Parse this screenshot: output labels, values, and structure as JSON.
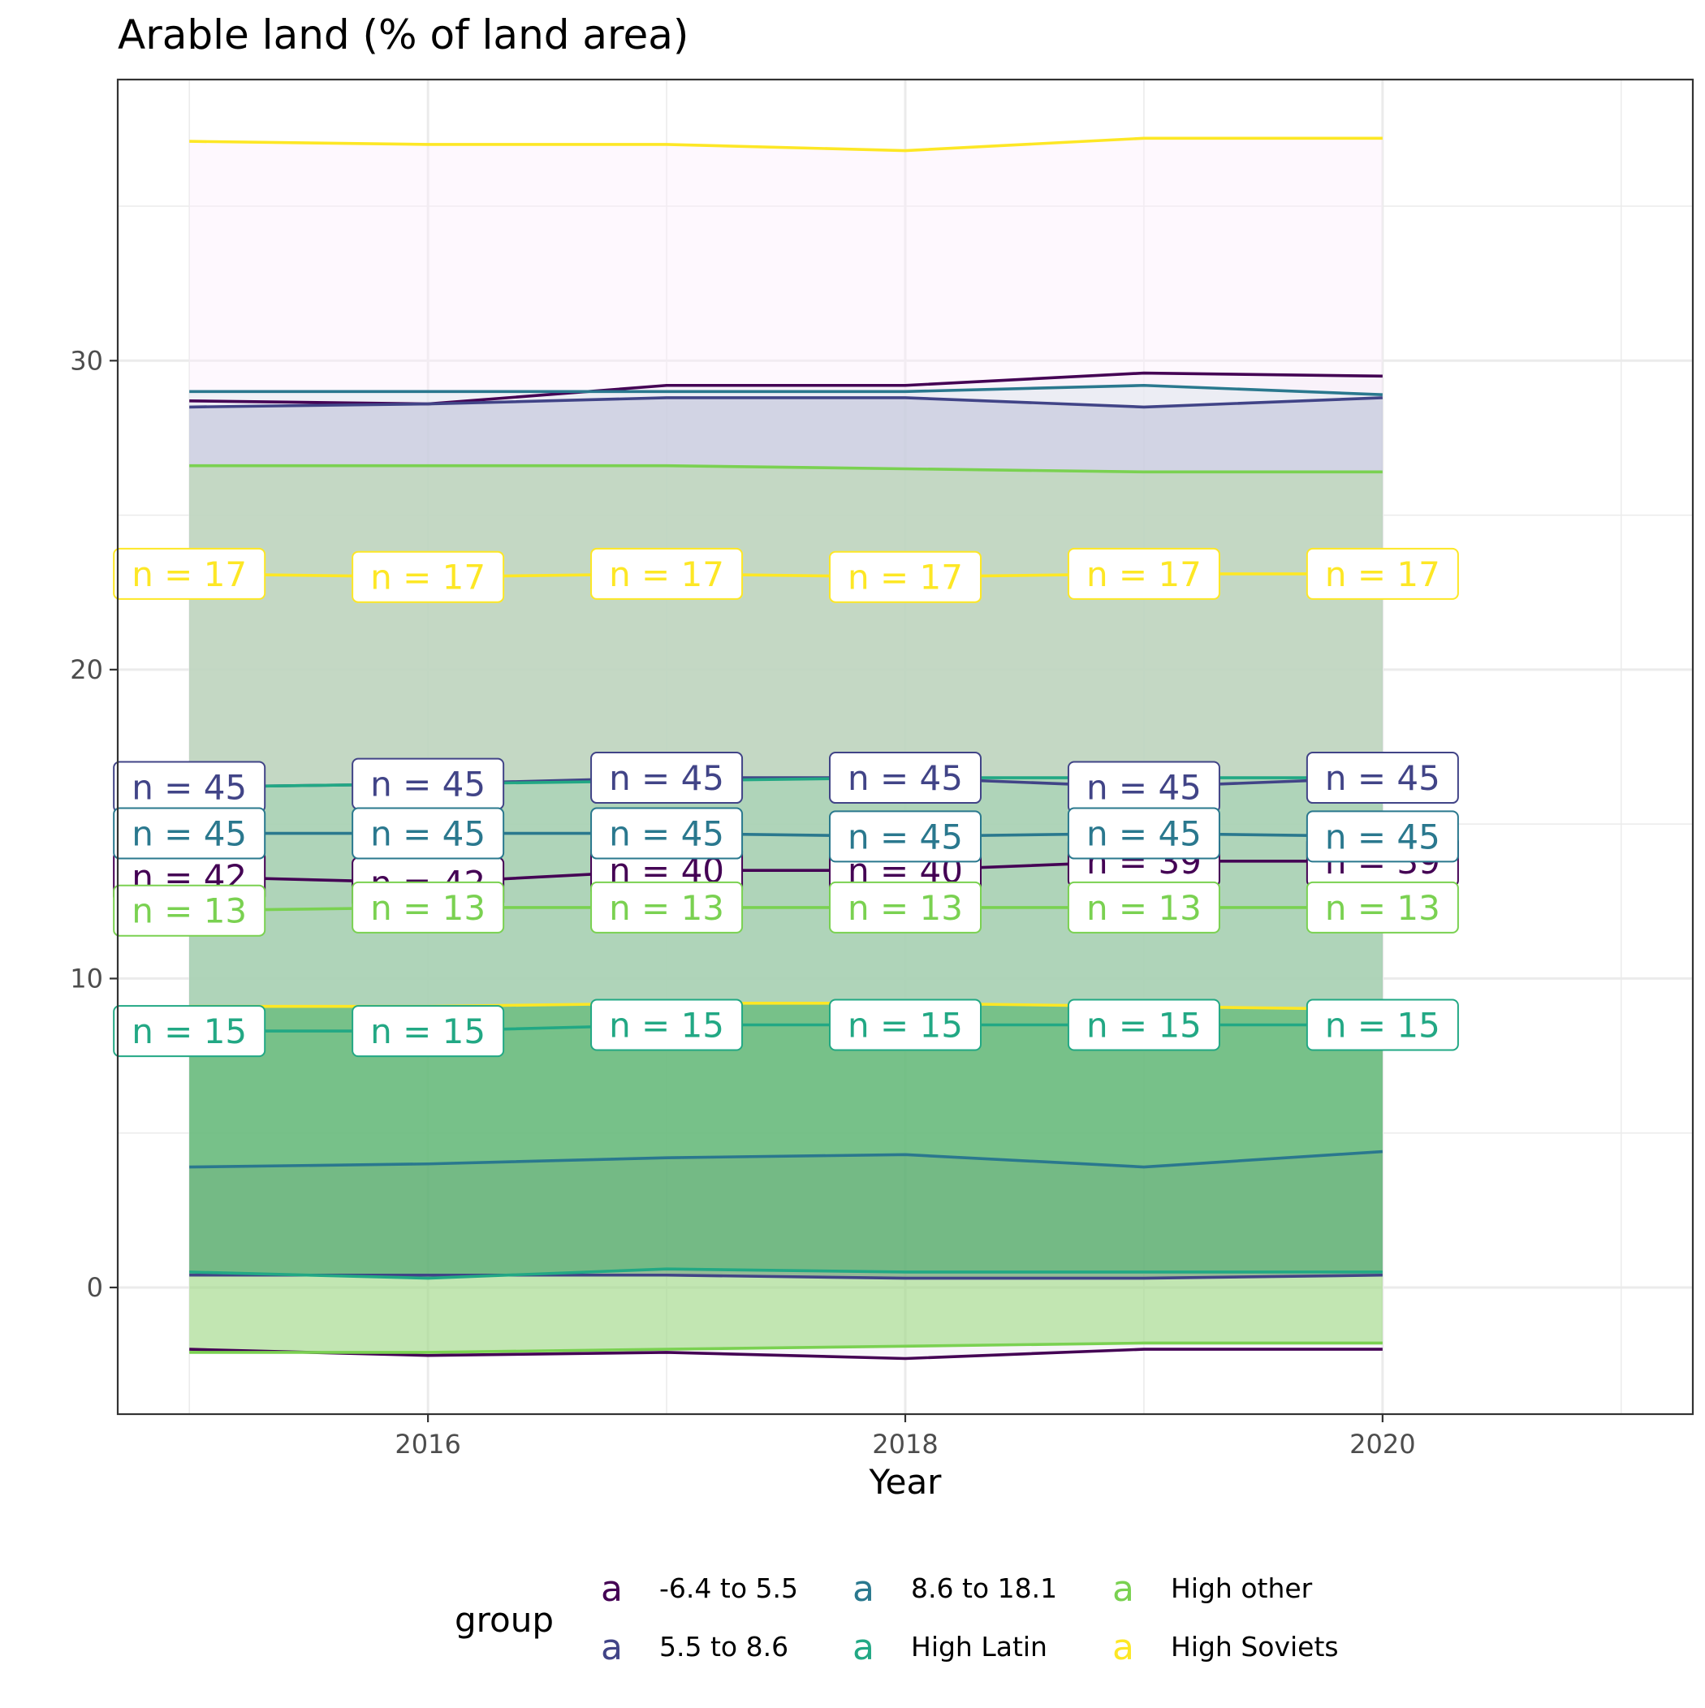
{
  "chart_data": {
    "type": "line",
    "title": "Arable land (% of land area)",
    "xlabel": "Year",
    "ylabel": "",
    "x": [
      2015,
      2016,
      2017,
      2018,
      2019,
      2020
    ],
    "xlim": [
      2014.7,
      2021.3
    ],
    "ylim": [
      -4.1,
      39.1
    ],
    "x_ticks": [
      2016,
      2018,
      2020
    ],
    "y_ticks": [
      0,
      10,
      20,
      30
    ],
    "grid": true,
    "legend": {
      "title": "group",
      "position": "bottom",
      "key_glyph": "a",
      "entries": [
        "-6.4 to 5.5",
        "5.5 to 8.6",
        "8.6 to 18.1",
        "High Latin",
        "High other",
        "High Soviets"
      ]
    },
    "colors": {
      "-6.4 to 5.5": "#440154",
      "5.5 to 8.6": "#414487",
      "8.6 to 18.1": "#2A788E",
      "High Latin": "#22A884",
      "High other": "#7AD151",
      "High Soviets": "#FDE725"
    },
    "ribbon_fills": {
      "-6.4 to 5.5": "#EDE6F1",
      "8.6 to 18.1": "#C1DFE0",
      "High Soviets": "#FCEEFC"
    },
    "series": [
      {
        "name": "-6.4 to 5.5",
        "mean": [
          13.3,
          13.1,
          13.5,
          13.5,
          13.8,
          13.8
        ],
        "upper": [
          28.7,
          28.6,
          29.2,
          29.2,
          29.6,
          29.5
        ],
        "lower": [
          -2.0,
          -2.2,
          -2.1,
          -2.3,
          -2.0,
          -2.0
        ],
        "labels": [
          "n = 42",
          "n = 42",
          "n = 40",
          "n = 40",
          "n = 39",
          "n = 39"
        ]
      },
      {
        "name": "5.5 to 8.6",
        "mean": [
          16.2,
          16.3,
          16.5,
          16.5,
          16.2,
          16.5
        ],
        "upper": [
          28.5,
          28.6,
          28.8,
          28.8,
          28.5,
          28.8
        ],
        "lower": [
          0.4,
          0.4,
          0.4,
          0.3,
          0.3,
          0.4
        ],
        "labels": [
          "n = 45",
          "n = 45",
          "n = 45",
          "n = 45",
          "n = 45",
          "n = 45"
        ]
      },
      {
        "name": "8.6 to 18.1",
        "mean": [
          14.7,
          14.7,
          14.7,
          14.6,
          14.7,
          14.6
        ],
        "upper": [
          29.0,
          29.0,
          29.0,
          29.0,
          29.2,
          28.9
        ],
        "lower": [
          3.9,
          4.0,
          4.2,
          4.3,
          3.9,
          4.4
        ],
        "labels": [
          "n = 45",
          "n = 45",
          "n = 45",
          "n = 45",
          "n = 45",
          "n = 45"
        ]
      },
      {
        "name": "High Latin",
        "mean": [
          8.3,
          8.3,
          8.5,
          8.5,
          8.5,
          8.5
        ],
        "upper": [
          16.2,
          16.3,
          16.4,
          16.5,
          16.5,
          16.5
        ],
        "lower": [
          0.5,
          0.3,
          0.6,
          0.5,
          0.5,
          0.5
        ],
        "labels": [
          "n = 15",
          "n = 15",
          "n = 15",
          "n = 15",
          "n = 15",
          "n = 15"
        ]
      },
      {
        "name": "High other",
        "mean": [
          12.2,
          12.3,
          12.3,
          12.3,
          12.3,
          12.3
        ],
        "upper": [
          26.6,
          26.6,
          26.6,
          26.5,
          26.4,
          26.4
        ],
        "lower": [
          -2.1,
          -2.1,
          -2.0,
          -1.9,
          -1.8,
          -1.8
        ],
        "labels": [
          "n = 13",
          "n = 13",
          "n = 13",
          "n = 13",
          "n = 13",
          "n = 13"
        ]
      },
      {
        "name": "High Soviets",
        "mean": [
          23.1,
          23.0,
          23.1,
          23.0,
          23.1,
          23.1
        ],
        "upper": [
          37.1,
          37.0,
          37.0,
          36.8,
          37.2,
          37.2
        ],
        "lower": [
          9.1,
          9.1,
          9.2,
          9.2,
          9.1,
          9.0
        ],
        "labels": [
          "n = 17",
          "n = 17",
          "n = 17",
          "n = 17",
          "n = 17",
          "n = 17"
        ]
      }
    ]
  }
}
